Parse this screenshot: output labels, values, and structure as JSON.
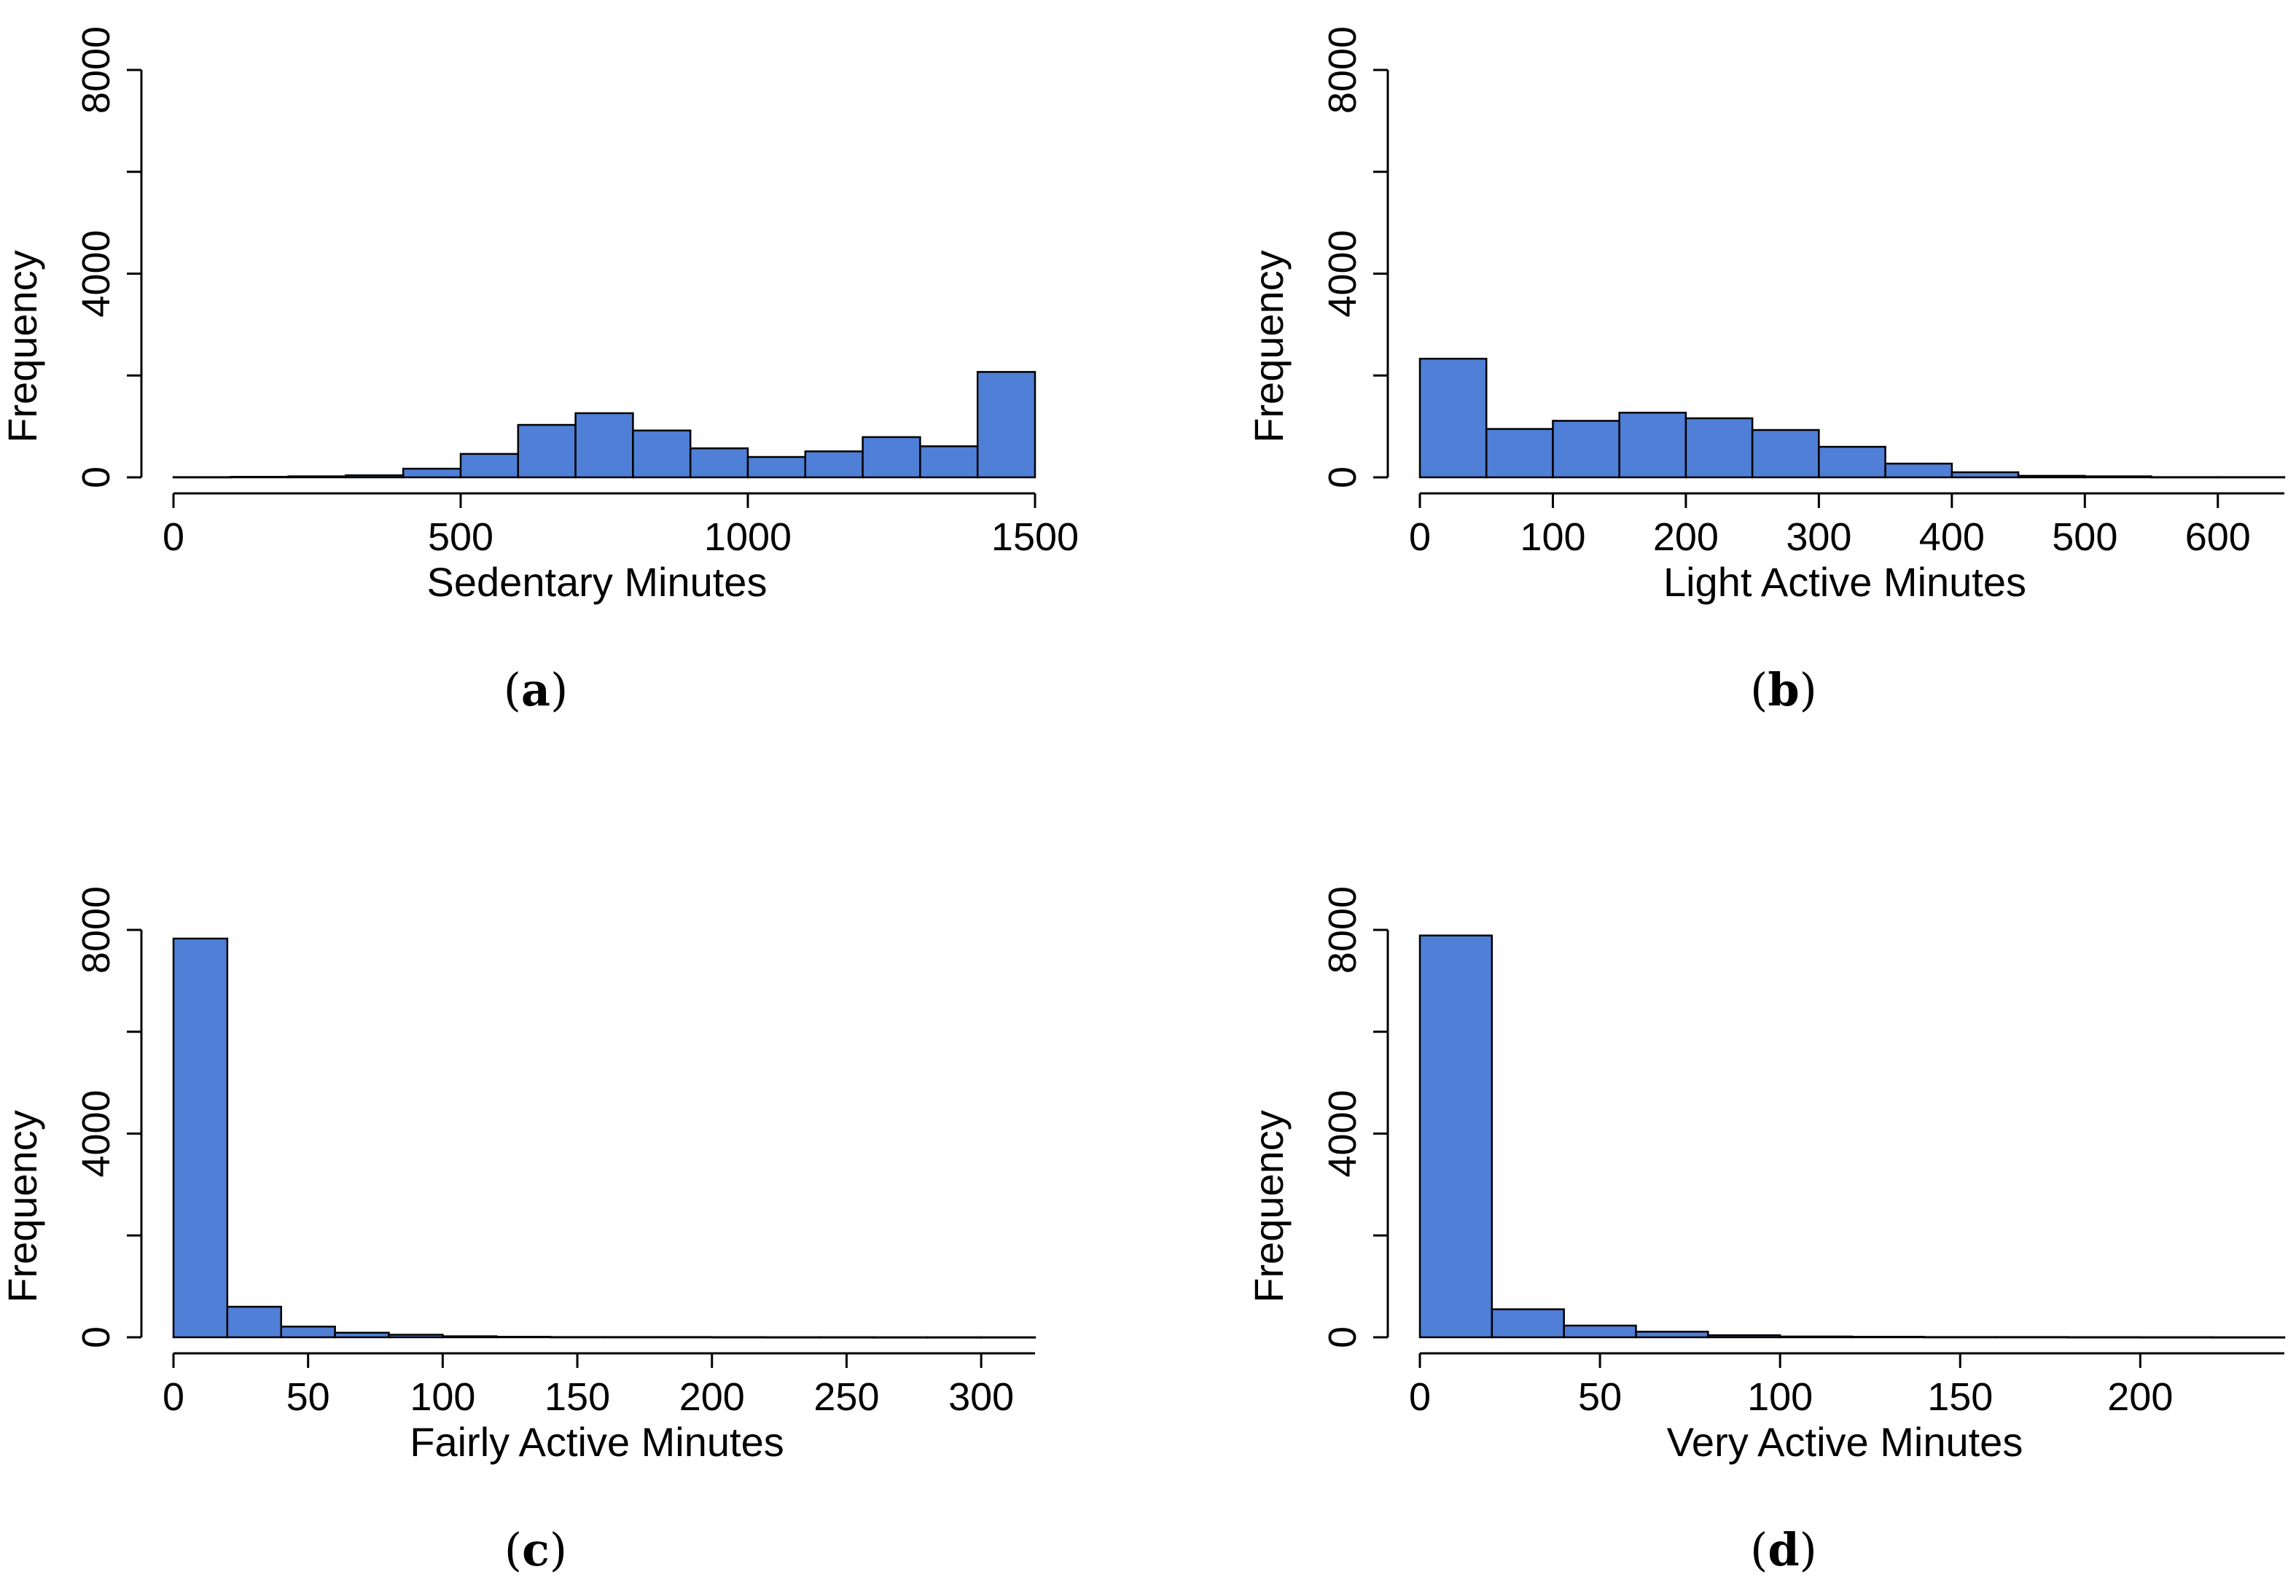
{
  "colors": {
    "bar_fill": "#4F7FD6",
    "bar_stroke": "#000000"
  },
  "chart_data": [
    {
      "type": "bar",
      "panel": "a",
      "title": "",
      "xlabel": "Sedentary Minutes",
      "ylabel": "Frequency",
      "xlim": [
        0,
        1500
      ],
      "ylim": [
        0,
        8000
      ],
      "xticks": [
        0,
        500,
        1000,
        1500
      ],
      "yticks": [
        0,
        4000,
        8000
      ],
      "bin_width": 100,
      "bin_edges_start": 0,
      "values": [
        5,
        10,
        20,
        40,
        170,
        460,
        1030,
        1260,
        920,
        570,
        400,
        510,
        790,
        610,
        2070
      ],
      "caption_open": "(",
      "caption_letter": "a",
      "caption_close": ")"
    },
    {
      "type": "bar",
      "panel": "b",
      "title": "",
      "xlabel": "Light Active Minutes",
      "ylabel": "Frequency",
      "xlim": [
        0,
        650
      ],
      "ylim": [
        0,
        8000
      ],
      "xticks": [
        0,
        100,
        200,
        300,
        400,
        500,
        600
      ],
      "yticks": [
        0,
        4000,
        8000
      ],
      "bin_width": 50,
      "bin_edges_start": 0,
      "values": [
        2330,
        950,
        1110,
        1270,
        1160,
        930,
        600,
        270,
        100,
        30,
        20,
        5,
        5
      ],
      "caption_open": "(",
      "caption_letter": "b",
      "caption_close": ")"
    },
    {
      "type": "bar",
      "panel": "c",
      "title": "",
      "xlabel": "Fairly Active Minutes",
      "ylabel": "Frequency",
      "xlim": [
        0,
        320
      ],
      "ylim": [
        0,
        8000
      ],
      "xticks": [
        0,
        50,
        100,
        150,
        200,
        250,
        300
      ],
      "yticks": [
        0,
        4000,
        8000
      ],
      "bin_width": 20,
      "bin_edges_start": 0,
      "values": [
        7830,
        600,
        210,
        90,
        50,
        20,
        10,
        5,
        5,
        5,
        3,
        2,
        2,
        1,
        1,
        1
      ],
      "caption_open": "(",
      "caption_letter": "c",
      "caption_close": ")"
    },
    {
      "type": "bar",
      "panel": "d",
      "title": "",
      "xlabel": "Very Active Minutes",
      "ylabel": "Frequency",
      "xlim": [
        0,
        240
      ],
      "ylim": [
        0,
        8000
      ],
      "xticks": [
        0,
        50,
        100,
        150,
        200
      ],
      "yticks": [
        0,
        4000,
        8000
      ],
      "bin_width": 20,
      "bin_edges_start": 0,
      "values": [
        7890,
        550,
        230,
        110,
        40,
        15,
        10,
        5,
        5,
        3,
        2,
        1
      ],
      "caption_open": "(",
      "caption_letter": "d",
      "caption_close": ")"
    }
  ]
}
